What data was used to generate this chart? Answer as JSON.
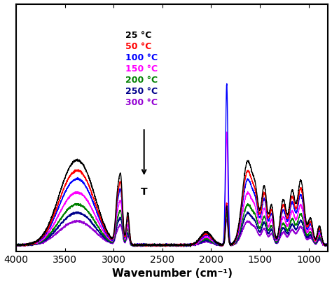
{
  "xmin": 4000,
  "xmax": 800,
  "xticks": [
    4000,
    3500,
    3000,
    2500,
    2000,
    1500,
    1000
  ],
  "xlabel": "Wavenumber (cm⁻¹)",
  "background_color": "#ffffff",
  "legend_labels": [
    "25 °C",
    "50 °C",
    "100 °C",
    "150 °C",
    "200 °C",
    "250 °C",
    "300 °C"
  ],
  "legend_colors": [
    "#000000",
    "#ff0000",
    "#0000ff",
    "#ff00ff",
    "#008000",
    "#00008b",
    "#9400d3"
  ],
  "scales": [
    1.0,
    0.88,
    0.78,
    0.62,
    0.48,
    0.38,
    0.28
  ],
  "arrow_label": "T",
  "ylim": [
    -0.02,
    0.75
  ]
}
